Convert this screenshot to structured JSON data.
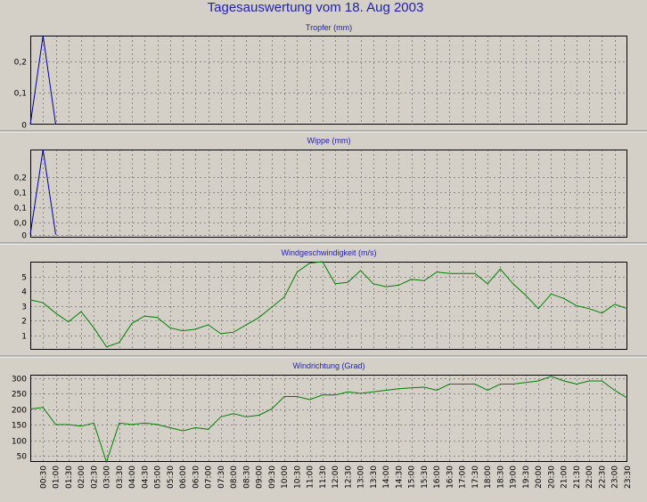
{
  "page": {
    "title": "Tagesauswertung vom 18. Aug 2003",
    "background": "#d4d0c8",
    "title_color": "#1f1fb0"
  },
  "chart_data": [
    {
      "type": "line",
      "title": "Tropfer (mm)",
      "x": [
        0,
        0.5,
        1
      ],
      "values": [
        0,
        0.28,
        0
      ],
      "ylim": [
        0,
        0.28
      ],
      "yticks": [
        0,
        0.1,
        0.2
      ],
      "ytick_labels": [
        "0",
        "0,1",
        "0,2"
      ],
      "color": "#0000a0",
      "xlim": [
        0,
        23.5
      ],
      "grid": true
    },
    {
      "type": "line",
      "title": "Wippe (mm)",
      "x": [
        0,
        0.5,
        1
      ],
      "values": [
        0,
        0.28,
        0
      ],
      "ylim": [
        -0.01,
        0.28
      ],
      "yticks": [
        0,
        0.04,
        0.09,
        0.14,
        0.19
      ],
      "ytick_labels": [
        "0",
        "0,0",
        "0,1",
        "0,1",
        "0,2"
      ],
      "color": "#0000a0",
      "xlim": [
        0,
        23.5
      ],
      "grid": true
    },
    {
      "type": "line",
      "title": "Windgeschwindigkeit (m/s)",
      "x": [
        0,
        0.5,
        1,
        1.5,
        2,
        2.5,
        3,
        3.5,
        4,
        4.5,
        5,
        5.5,
        6,
        6.5,
        7,
        7.5,
        8,
        8.5,
        9,
        9.5,
        10,
        10.5,
        11,
        11.5,
        12,
        12.5,
        13,
        13.5,
        14,
        14.5,
        15,
        15.5,
        16,
        16.5,
        17,
        17.5,
        18,
        18.5,
        19,
        19.5,
        20,
        20.5,
        21,
        21.5,
        22,
        22.5,
        23,
        23.5
      ],
      "values": [
        3.4,
        3.2,
        2.5,
        1.9,
        2.6,
        1.5,
        0.2,
        0.5,
        1.8,
        2.3,
        2.2,
        1.5,
        1.3,
        1.4,
        1.7,
        1.1,
        1.2,
        1.7,
        2.2,
        2.9,
        3.6,
        5.3,
        5.9,
        6.0,
        4.5,
        4.6,
        5.4,
        4.5,
        4.3,
        4.4,
        4.8,
        4.7,
        5.3,
        5.2,
        5.2,
        5.2,
        4.5,
        5.5,
        4.5,
        3.7,
        2.8,
        3.8,
        3.5,
        3.0,
        2.8,
        2.5,
        3.1,
        2.8
      ],
      "ylim": [
        0,
        6
      ],
      "yticks": [
        1,
        2,
        3,
        4,
        5
      ],
      "ytick_labels": [
        "1",
        "2",
        "3",
        "4",
        "5"
      ],
      "color": "#008000",
      "xlim": [
        0,
        23.5
      ],
      "grid": true
    },
    {
      "type": "line",
      "title": "Windrichtung (Grad)",
      "x": [
        0,
        0.5,
        1,
        1.5,
        2,
        2.5,
        3,
        3.5,
        4,
        4.5,
        5,
        5.5,
        6,
        6.5,
        7,
        7.5,
        8,
        8.5,
        9,
        9.5,
        10,
        10.5,
        11,
        11.5,
        12,
        12.5,
        13,
        13.5,
        14,
        14.5,
        15,
        15.5,
        16,
        16.5,
        17,
        17.5,
        18,
        18.5,
        19,
        19.5,
        20,
        20.5,
        21,
        21.5,
        22,
        22.5,
        23,
        23.5
      ],
      "values": [
        200,
        205,
        150,
        150,
        145,
        155,
        30,
        155,
        150,
        155,
        150,
        140,
        130,
        140,
        135,
        175,
        185,
        175,
        180,
        200,
        240,
        240,
        230,
        245,
        245,
        255,
        250,
        255,
        260,
        265,
        268,
        270,
        260,
        280,
        280,
        280,
        260,
        280,
        280,
        285,
        290,
        305,
        290,
        280,
        290,
        290,
        260,
        235
      ],
      "ylim": [
        30,
        310
      ],
      "yticks": [
        50,
        100,
        150,
        200,
        250,
        300
      ],
      "ytick_labels": [
        "50",
        "100",
        "150",
        "200",
        "250",
        "300"
      ],
      "color": "#008000",
      "xlim": [
        0,
        23.5
      ],
      "grid": true
    }
  ],
  "x_axis": {
    "tick_labels": [
      "00:30",
      "01:00",
      "01:30",
      "02:00",
      "02:30",
      "03:00",
      "03:30",
      "04:00",
      "04:30",
      "05:00",
      "05:30",
      "06:00",
      "06:30",
      "07:00",
      "07:30",
      "08:00",
      "08:30",
      "09:00",
      "09:30",
      "10:00",
      "10:30",
      "11:00",
      "11:30",
      "12:00",
      "12:30",
      "13:00",
      "13:30",
      "14:00",
      "14:30",
      "15:00",
      "15:30",
      "16:00",
      "16:30",
      "17:00",
      "17:30",
      "18:00",
      "18:30",
      "19:00",
      "19:30",
      "20:00",
      "20:30",
      "21:00",
      "21:30",
      "22:00",
      "22:30",
      "23:00",
      "23:30"
    ]
  }
}
